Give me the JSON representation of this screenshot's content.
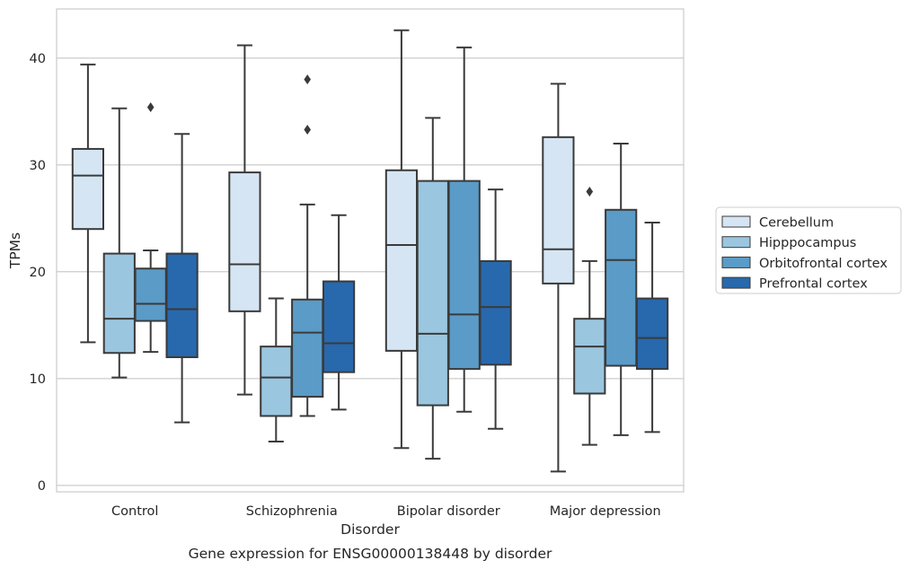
{
  "chart_data": {
    "type": "box",
    "caption": "Gene expression for ENSG00000138448 by disorder",
    "xlabel": "Disorder",
    "ylabel": "TPMs",
    "ylim": [
      -0.6,
      44.6
    ],
    "yticks": [
      0,
      10,
      20,
      30,
      40
    ],
    "grid": "horizontal",
    "legend_position": "right",
    "categories": [
      "Control",
      "Schizophrenia",
      "Bipolar disorder",
      "Major depression"
    ],
    "series": [
      {
        "name": "Cerebellum",
        "color": "#d6e5f4",
        "boxes": [
          {
            "whislo": 13.4,
            "q1": 24.0,
            "med": 29.0,
            "q3": 31.5,
            "whishi": 39.4,
            "fliers": []
          },
          {
            "whislo": 8.5,
            "q1": 16.3,
            "med": 20.7,
            "q3": 29.3,
            "whishi": 41.2,
            "fliers": []
          },
          {
            "whislo": 3.5,
            "q1": 12.6,
            "med": 22.5,
            "q3": 29.5,
            "whishi": 42.6,
            "fliers": []
          },
          {
            "whislo": 1.3,
            "q1": 18.9,
            "med": 22.1,
            "q3": 32.6,
            "whishi": 37.6,
            "fliers": []
          }
        ]
      },
      {
        "name": "Hipppocampus",
        "color": "#9ac6e0",
        "boxes": [
          {
            "whislo": 10.1,
            "q1": 12.4,
            "med": 15.6,
            "q3": 21.7,
            "whishi": 35.3,
            "fliers": []
          },
          {
            "whislo": 4.1,
            "q1": 6.5,
            "med": 10.1,
            "q3": 13.0,
            "whishi": 17.5,
            "fliers": []
          },
          {
            "whislo": 2.5,
            "q1": 7.5,
            "med": 14.2,
            "q3": 28.5,
            "whishi": 34.4,
            "fliers": []
          },
          {
            "whislo": 3.8,
            "q1": 8.6,
            "med": 13.0,
            "q3": 15.6,
            "whishi": 21.0,
            "fliers": [
              27.5
            ]
          }
        ]
      },
      {
        "name": "Orbitofrontal cortex",
        "color": "#5a9bc8",
        "boxes": [
          {
            "whislo": 12.5,
            "q1": 15.4,
            "med": 17.0,
            "q3": 20.3,
            "whishi": 22.0,
            "fliers": [
              35.4
            ]
          },
          {
            "whislo": 6.5,
            "q1": 8.3,
            "med": 14.3,
            "q3": 17.4,
            "whishi": 26.3,
            "fliers": [
              33.3,
              38.0
            ]
          },
          {
            "whislo": 6.9,
            "q1": 10.9,
            "med": 16.0,
            "q3": 28.5,
            "whishi": 41.0,
            "fliers": []
          },
          {
            "whislo": 4.7,
            "q1": 11.2,
            "med": 21.1,
            "q3": 25.8,
            "whishi": 32.0,
            "fliers": []
          }
        ]
      },
      {
        "name": "Prefrontal cortex",
        "color": "#2868ad",
        "boxes": [
          {
            "whislo": 5.9,
            "q1": 12.0,
            "med": 16.5,
            "q3": 21.7,
            "whishi": 32.9,
            "fliers": []
          },
          {
            "whislo": 7.1,
            "q1": 10.6,
            "med": 13.3,
            "q3": 19.1,
            "whishi": 25.3,
            "fliers": []
          },
          {
            "whislo": 5.3,
            "q1": 11.3,
            "med": 16.7,
            "q3": 21.0,
            "whishi": 27.7,
            "fliers": []
          },
          {
            "whislo": 5.0,
            "q1": 10.9,
            "med": 13.8,
            "q3": 17.5,
            "whishi": 24.6,
            "fliers": []
          }
        ]
      }
    ]
  }
}
